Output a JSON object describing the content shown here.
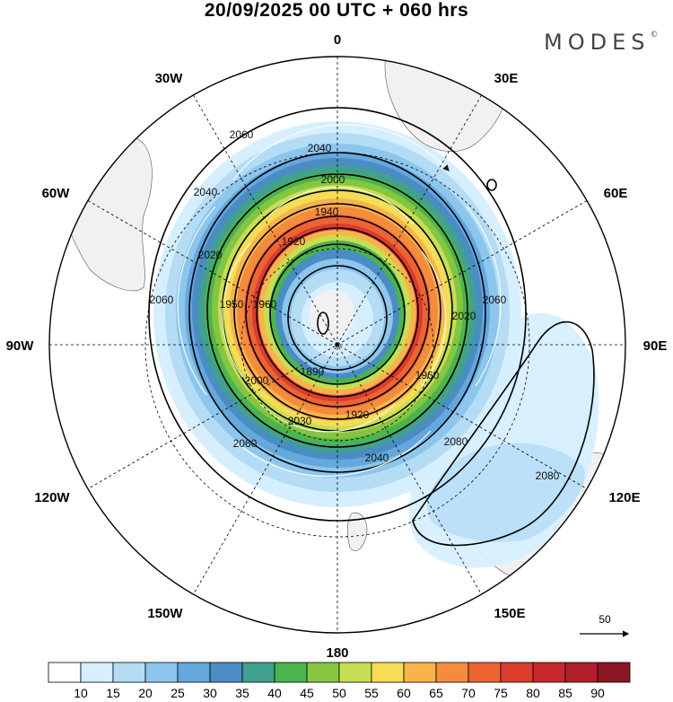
{
  "header": {
    "title": "20/09/2025  00 UTC  + 060 hrs",
    "brand": "MODES",
    "brand_mark": "©"
  },
  "map": {
    "projection": "south polar stereographic",
    "longitude_labels": {
      "top": "0",
      "top_right": "30E",
      "right_upper": "60E",
      "right": "90E",
      "right_lower": "120E",
      "bottom_right": "150E",
      "bottom": "180",
      "bottom_left": "150W",
      "left_lower": "120W",
      "left": "90W",
      "left_upper": "60W",
      "top_left": "30W"
    },
    "contour_labels": [
      "2060",
      "2040",
      "2000",
      "1940",
      "1920",
      "2040",
      "2020",
      "2060",
      "1950",
      "1960",
      "1890",
      "1920",
      "1960",
      "2020",
      "2060",
      "2000",
      "2030",
      "2040",
      "2060",
      "2080",
      "2080"
    ],
    "reference_vector_label": "50"
  },
  "colorbar": {
    "colors": [
      "#ffffff",
      "#d6efff",
      "#b4dcf5",
      "#8cc6ec",
      "#64a8dc",
      "#4a8cc4",
      "#41a08e",
      "#4ab54c",
      "#86c541",
      "#c6df52",
      "#f7dc55",
      "#f8b44a",
      "#f48c3c",
      "#ec6432",
      "#dc3c2c",
      "#c8282c",
      "#b01e2a",
      "#8c1622"
    ],
    "ticks": [
      "10",
      "15",
      "20",
      "25",
      "30",
      "35",
      "40",
      "45",
      "50",
      "55",
      "60",
      "65",
      "70",
      "75",
      "80",
      "85",
      "90"
    ]
  }
}
